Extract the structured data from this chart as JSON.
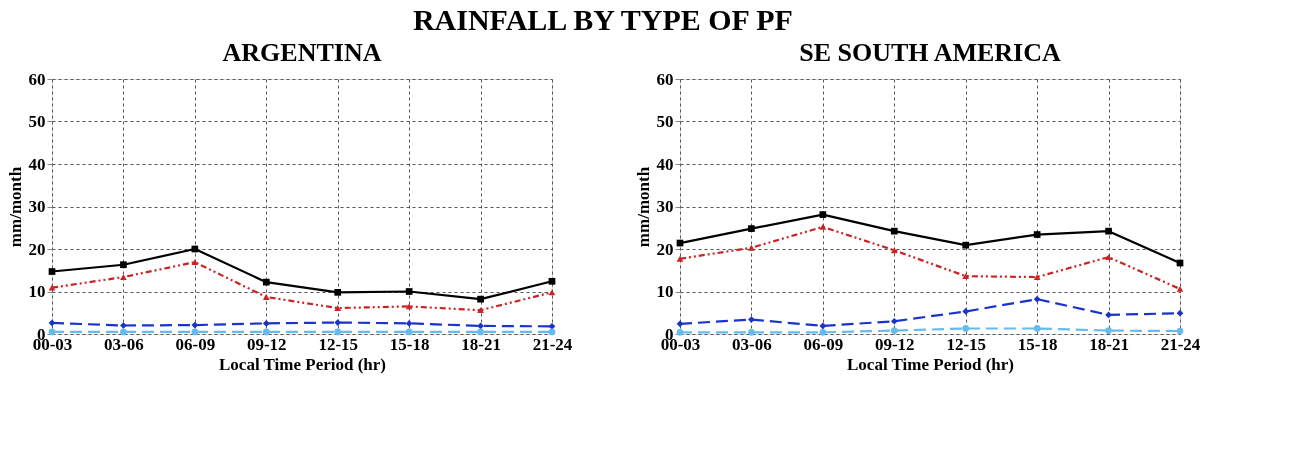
{
  "chart_data": [
    {
      "type": "line",
      "title": "RAINFALL BY TYPE OF PF",
      "subtitle": "ARGENTINA",
      "xlabel": "Local Time Period (hr)",
      "ylabel": "mm/month",
      "categories": [
        "00-03",
        "03-06",
        "06-09",
        "09-12",
        "12-15",
        "15-18",
        "18-21",
        "21-24"
      ],
      "series": [
        {
          "color": "#000000",
          "marker": "square",
          "line_style": "solid",
          "values": [
            14.7,
            16.3,
            20.0,
            12.2,
            9.8,
            10.0,
            8.2,
            12.4
          ]
        },
        {
          "color": "#cc2222",
          "marker": "triangle",
          "line_style": "dotted",
          "values": [
            10.9,
            13.4,
            16.9,
            8.7,
            6.1,
            6.5,
            5.6,
            9.8
          ]
        },
        {
          "color": "#1a33cc",
          "marker": "diamond",
          "line_style": "dashed",
          "values": [
            2.6,
            2.0,
            2.1,
            2.5,
            2.7,
            2.5,
            1.9,
            1.8
          ]
        },
        {
          "color": "#66bbee",
          "marker": "circle",
          "line_style": "dashed",
          "values": [
            0.5,
            0.5,
            0.5,
            0.5,
            0.5,
            0.5,
            0.5,
            0.5
          ]
        }
      ],
      "ylim": [
        0,
        60
      ],
      "yticks": [
        0,
        10,
        20,
        30,
        40,
        50,
        60
      ],
      "grid": true
    },
    {
      "type": "line",
      "title": "SE SOUTH AMERICA",
      "xlabel": "Local Time Period (hr)",
      "ylabel": "mm/month",
      "categories": [
        "00-03",
        "03-06",
        "06-09",
        "09-12",
        "12-15",
        "15-18",
        "18-21",
        "21-24"
      ],
      "series": [
        {
          "color": "#000000",
          "marker": "square",
          "line_style": "solid",
          "values": [
            21.4,
            24.8,
            28.1,
            24.2,
            20.9,
            23.4,
            24.2,
            16.7
          ]
        },
        {
          "color": "#cc2222",
          "marker": "triangle",
          "line_style": "dotted",
          "values": [
            17.7,
            20.3,
            25.2,
            19.7,
            13.6,
            13.4,
            18.1,
            10.6
          ]
        },
        {
          "color": "#1a33cc",
          "marker": "diamond",
          "line_style": "dashed",
          "values": [
            2.4,
            3.4,
            1.9,
            3.0,
            5.3,
            8.2,
            4.5,
            4.9
          ]
        },
        {
          "color": "#66bbee",
          "marker": "circle",
          "line_style": "dashed",
          "values": [
            0.4,
            0.4,
            0.4,
            0.8,
            1.3,
            1.3,
            0.8,
            0.7
          ]
        }
      ],
      "ylim": [
        0,
        60
      ],
      "yticks": [
        0,
        10,
        20,
        30,
        40,
        50,
        60
      ],
      "grid": true
    }
  ]
}
